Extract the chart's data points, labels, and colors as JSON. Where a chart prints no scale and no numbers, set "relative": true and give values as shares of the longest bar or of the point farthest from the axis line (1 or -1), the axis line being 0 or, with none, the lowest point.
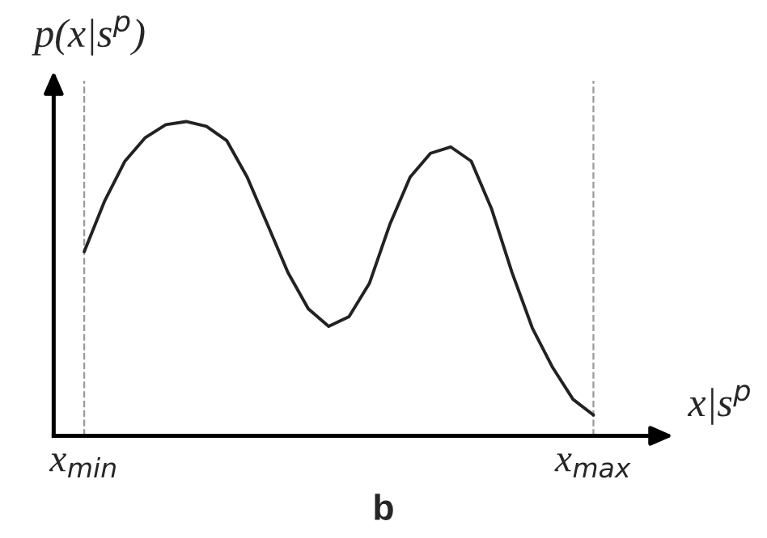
{
  "chart_data": {
    "type": "line",
    "relative": true,
    "xlabel": "x|s$^{p}$",
    "ylabel": "p(x|s$^{p}$)",
    "annotations": [
      "b"
    ],
    "categories": [
      "x$_{min}$",
      null,
      null,
      null,
      null,
      null,
      null,
      null,
      null,
      null,
      null,
      null,
      null,
      null,
      null,
      null,
      null,
      null,
      null,
      null,
      null,
      null,
      null,
      null,
      null,
      "x$_{max}$"
    ],
    "grid": "x",
    "marker": "none",
    "line_style": "solid",
    "series": [
      {
        "color": "#222222",
        "values": [
          0.586,
          0.747,
          0.874,
          0.949,
          0.99,
          1.0,
          0.985,
          0.939,
          0.823,
          0.672,
          0.52,
          0.404,
          0.348,
          0.379,
          0.485,
          0.672,
          0.823,
          0.899,
          0.919,
          0.874,
          0.722,
          0.52,
          0.343,
          0.217,
          0.116,
          0.066
        ]
      }
    ]
  }
}
